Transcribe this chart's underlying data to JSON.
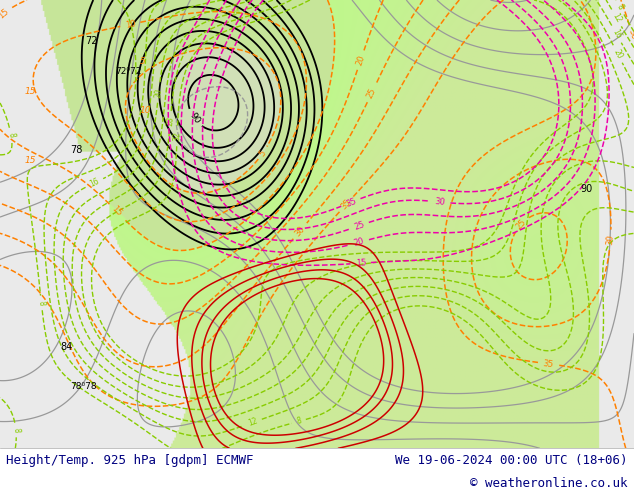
{
  "title_left": "Height/Temp. 925 hPa [gdpm] ECMWF",
  "title_right": "We 19-06-2024 00:00 UTC (18+06)",
  "copyright": "© weatheronline.co.uk",
  "bg_color": "#ffffff",
  "fig_width": 6.34,
  "fig_height": 4.9,
  "dpi": 100,
  "text_color": "#000080",
  "text_fontsize": 9.0,
  "land_green": "#c8e89a",
  "land_gray": "#c0c0c0",
  "sea_color": "#f0f0f0",
  "col_black": "#000000",
  "col_orange": "#ff8000",
  "col_green": "#80cc00",
  "col_pink": "#ee00aa",
  "col_teal": "#00aaaa",
  "col_gray": "#999999",
  "col_red": "#cc0000"
}
